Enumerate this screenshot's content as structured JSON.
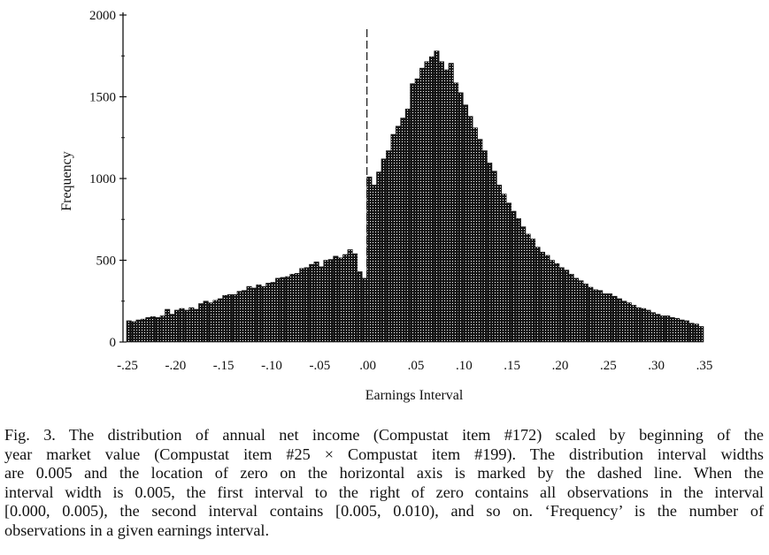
{
  "chart_data": {
    "type": "bar",
    "title": "",
    "xlabel": "Earnings Interval",
    "ylabel": "Frequency",
    "bin_width": 0.005,
    "xlim": [
      -0.25,
      0.35
    ],
    "ylim": [
      0,
      2000
    ],
    "x_ticks": [
      -0.25,
      -0.2,
      -0.15,
      -0.1,
      -0.05,
      0.0,
      0.05,
      0.1,
      0.15,
      0.2,
      0.25,
      0.3,
      0.35
    ],
    "x_tick_labels": [
      "-.25",
      "-.20",
      "-.15",
      "-.10",
      "-.05",
      ".00",
      ".05",
      ".10",
      ".15",
      ".20",
      ".25",
      ".30",
      ".35"
    ],
    "y_ticks": [
      0,
      500,
      1000,
      1500,
      2000
    ],
    "y_tick_labels": [
      "0",
      "500",
      "1000",
      "1500",
      "2000"
    ],
    "zero_marker": {
      "x": 0.0,
      "style": "dashed"
    },
    "grid": false,
    "legend": "none",
    "bar_left_edges": [
      -0.25,
      -0.245,
      -0.24,
      -0.235,
      -0.23,
      -0.225,
      -0.22,
      -0.215,
      -0.21,
      -0.205,
      -0.2,
      -0.195,
      -0.19,
      -0.185,
      -0.18,
      -0.175,
      -0.17,
      -0.165,
      -0.16,
      -0.155,
      -0.15,
      -0.145,
      -0.14,
      -0.135,
      -0.13,
      -0.125,
      -0.12,
      -0.115,
      -0.11,
      -0.105,
      -0.1,
      -0.095,
      -0.09,
      -0.085,
      -0.08,
      -0.075,
      -0.07,
      -0.065,
      -0.06,
      -0.055,
      -0.05,
      -0.045,
      -0.04,
      -0.035,
      -0.03,
      -0.025,
      -0.02,
      -0.015,
      -0.01,
      -0.005,
      0.0,
      0.005,
      0.01,
      0.015,
      0.02,
      0.025,
      0.03,
      0.035,
      0.04,
      0.045,
      0.05,
      0.055,
      0.06,
      0.065,
      0.07,
      0.075,
      0.08,
      0.085,
      0.09,
      0.095,
      0.1,
      0.105,
      0.11,
      0.115,
      0.12,
      0.125,
      0.13,
      0.135,
      0.14,
      0.145,
      0.15,
      0.155,
      0.16,
      0.165,
      0.17,
      0.175,
      0.18,
      0.185,
      0.19,
      0.195,
      0.2,
      0.205,
      0.21,
      0.215,
      0.22,
      0.225,
      0.23,
      0.235,
      0.24,
      0.245,
      0.25,
      0.255,
      0.26,
      0.265,
      0.27,
      0.275,
      0.28,
      0.285,
      0.29,
      0.295,
      0.3,
      0.305,
      0.31,
      0.315,
      0.32,
      0.325,
      0.33,
      0.335,
      0.34,
      0.345
    ],
    "values": [
      130,
      125,
      135,
      140,
      150,
      155,
      150,
      160,
      200,
      170,
      195,
      205,
      195,
      210,
      200,
      235,
      250,
      240,
      255,
      265,
      285,
      290,
      290,
      310,
      315,
      340,
      330,
      350,
      340,
      360,
      365,
      390,
      395,
      400,
      415,
      420,
      450,
      455,
      475,
      490,
      460,
      500,
      505,
      525,
      515,
      535,
      565,
      540,
      430,
      390,
      1010,
      960,
      1040,
      1120,
      1170,
      1270,
      1320,
      1370,
      1425,
      1580,
      1610,
      1675,
      1715,
      1745,
      1780,
      1715,
      1665,
      1705,
      1585,
      1525,
      1450,
      1380,
      1310,
      1240,
      1170,
      1095,
      1045,
      960,
      905,
      850,
      800,
      755,
      705,
      660,
      630,
      580,
      550,
      530,
      500,
      480,
      455,
      440,
      415,
      390,
      375,
      355,
      335,
      320,
      315,
      295,
      295,
      280,
      265,
      250,
      240,
      225,
      210,
      205,
      195,
      180,
      170,
      160,
      160,
      150,
      145,
      135,
      130,
      115,
      110,
      95
    ]
  },
  "caption": {
    "lines": [
      "Fig. 3. The distribution of annual net income (Compustat item #172) scaled by beginning of the",
      "year market value (Compustat item #25 × Compustat item #199). The distribution interval widths",
      "are 0.005 and the location of zero on the horizontal axis is marked by the dashed line. When the",
      "interval width is 0.005, the first interval to the right of zero contains all observations in the interval",
      "[0.000, 0.005), the second interval contains [0.005, 0.010), and so on. ‘Frequency’ is the number of",
      "observations in a given earnings interval."
    ]
  },
  "colors": {
    "bar_fill": "#141414",
    "bar_stipple": "#ffffff",
    "axis": "#111111"
  }
}
